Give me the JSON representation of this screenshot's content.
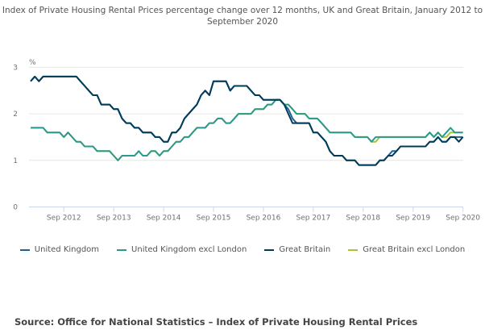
{
  "chart_data": {
    "type": "line",
    "title": "Index of Private Housing Rental Prices percentage change over 12 months, UK and Great Britain, January 2012 to September 2020",
    "title_lines": [
      "Index of Private Housing Rental Prices percentage change over 12 months, UK and Great Britain, January 2012 to",
      "September 2020"
    ],
    "ylabel": "%",
    "xlabel": "",
    "ylim": [
      0,
      3
    ],
    "yticks": [
      "0",
      "1",
      "2",
      "3"
    ],
    "x_start": "Jan 2012",
    "x_end": "Sep 2020",
    "x_step": "month",
    "xticks": [
      "Sep 2012",
      "Sep 2013",
      "Sep 2014",
      "Sep 2015",
      "Sep 2016",
      "Sep 2017",
      "Sep 2018",
      "Sep 2019",
      "Sep 2020"
    ],
    "xtick_month_index": [
      8,
      20,
      32,
      44,
      56,
      68,
      80,
      92,
      104
    ],
    "grid": true,
    "legend_position": "bottom",
    "series": [
      {
        "name": "Great Britain excl London",
        "color": "#a8c23a",
        "values": [
          1.7,
          1.7,
          1.7,
          1.7,
          1.6,
          1.6,
          1.6,
          1.6,
          1.5,
          1.6,
          1.5,
          1.4,
          1.4,
          1.3,
          1.3,
          1.3,
          1.2,
          1.2,
          1.2,
          1.2,
          1.1,
          1.0,
          1.1,
          1.1,
          1.1,
          1.1,
          1.2,
          1.1,
          1.1,
          1.2,
          1.2,
          1.1,
          1.2,
          1.2,
          1.3,
          1.4,
          1.4,
          1.5,
          1.5,
          1.6,
          1.7,
          1.7,
          1.7,
          1.8,
          1.8,
          1.9,
          1.9,
          1.8,
          1.8,
          1.9,
          2.0,
          2.0,
          2.0,
          2.0,
          2.1,
          2.1,
          2.1,
          2.2,
          2.2,
          2.3,
          2.3,
          2.2,
          2.2,
          2.1,
          2.0,
          2.0,
          2.0,
          1.9,
          1.9,
          1.9,
          1.8,
          1.7,
          1.6,
          1.6,
          1.6,
          1.6,
          1.6,
          1.6,
          1.5,
          1.5,
          1.5,
          1.5,
          1.4,
          1.4,
          1.5,
          1.5,
          1.5,
          1.5,
          1.5,
          1.5,
          1.5,
          1.5,
          1.5,
          1.5,
          1.5,
          1.5,
          1.6,
          1.5,
          1.6,
          1.5,
          1.5,
          1.6,
          1.6,
          1.6,
          1.6
        ]
      },
      {
        "name": "United Kingdom excl London",
        "color": "#2a9a8e",
        "values": [
          1.7,
          1.7,
          1.7,
          1.7,
          1.6,
          1.6,
          1.6,
          1.6,
          1.5,
          1.6,
          1.5,
          1.4,
          1.4,
          1.3,
          1.3,
          1.3,
          1.2,
          1.2,
          1.2,
          1.2,
          1.1,
          1.0,
          1.1,
          1.1,
          1.1,
          1.1,
          1.2,
          1.1,
          1.1,
          1.2,
          1.2,
          1.1,
          1.2,
          1.2,
          1.3,
          1.4,
          1.4,
          1.5,
          1.5,
          1.6,
          1.7,
          1.7,
          1.7,
          1.8,
          1.8,
          1.9,
          1.9,
          1.8,
          1.8,
          1.9,
          2.0,
          2.0,
          2.0,
          2.0,
          2.1,
          2.1,
          2.1,
          2.2,
          2.2,
          2.3,
          2.3,
          2.2,
          2.2,
          2.1,
          2.0,
          2.0,
          2.0,
          1.9,
          1.9,
          1.9,
          1.8,
          1.7,
          1.6,
          1.6,
          1.6,
          1.6,
          1.6,
          1.6,
          1.5,
          1.5,
          1.5,
          1.5,
          1.4,
          1.5,
          1.5,
          1.5,
          1.5,
          1.5,
          1.5,
          1.5,
          1.5,
          1.5,
          1.5,
          1.5,
          1.5,
          1.5,
          1.6,
          1.5,
          1.6,
          1.5,
          1.6,
          1.7,
          1.6,
          1.6,
          1.6
        ]
      },
      {
        "name": "United Kingdom",
        "color": "#206095",
        "values": [
          2.7,
          2.8,
          2.7,
          2.8,
          2.8,
          2.8,
          2.8,
          2.8,
          2.8,
          2.8,
          2.8,
          2.8,
          2.7,
          2.6,
          2.5,
          2.4,
          2.4,
          2.2,
          2.2,
          2.2,
          2.1,
          2.1,
          1.9,
          1.8,
          1.8,
          1.7,
          1.7,
          1.6,
          1.6,
          1.6,
          1.5,
          1.5,
          1.4,
          1.4,
          1.6,
          1.6,
          1.7,
          1.9,
          2.0,
          2.1,
          2.2,
          2.4,
          2.5,
          2.4,
          2.7,
          2.7,
          2.7,
          2.7,
          2.5,
          2.6,
          2.6,
          2.6,
          2.6,
          2.5,
          2.4,
          2.4,
          2.3,
          2.3,
          2.3,
          2.3,
          2.3,
          2.2,
          2.1,
          1.9,
          1.8,
          1.8,
          1.8,
          1.8,
          1.6,
          1.6,
          1.5,
          1.4,
          1.2,
          1.1,
          1.1,
          1.1,
          1.0,
          1.0,
          1.0,
          0.9,
          0.9,
          0.9,
          0.9,
          0.9,
          1.0,
          1.0,
          1.1,
          1.2,
          1.2,
          1.3,
          1.3,
          1.3,
          1.3,
          1.3,
          1.3,
          1.3,
          1.4,
          1.4,
          1.5,
          1.4,
          1.4,
          1.5,
          1.5,
          1.5,
          1.5
        ]
      },
      {
        "name": "Great Britain",
        "color": "#003c57",
        "values": [
          2.7,
          2.8,
          2.7,
          2.8,
          2.8,
          2.8,
          2.8,
          2.8,
          2.8,
          2.8,
          2.8,
          2.8,
          2.7,
          2.6,
          2.5,
          2.4,
          2.4,
          2.2,
          2.2,
          2.2,
          2.1,
          2.1,
          1.9,
          1.8,
          1.8,
          1.7,
          1.7,
          1.6,
          1.6,
          1.6,
          1.5,
          1.5,
          1.4,
          1.4,
          1.6,
          1.6,
          1.7,
          1.9,
          2.0,
          2.1,
          2.2,
          2.4,
          2.5,
          2.4,
          2.7,
          2.7,
          2.7,
          2.7,
          2.5,
          2.6,
          2.6,
          2.6,
          2.6,
          2.5,
          2.4,
          2.4,
          2.3,
          2.3,
          2.3,
          2.3,
          2.3,
          2.2,
          2.0,
          1.8,
          1.8,
          1.8,
          1.8,
          1.8,
          1.6,
          1.6,
          1.5,
          1.4,
          1.2,
          1.1,
          1.1,
          1.1,
          1.0,
          1.0,
          1.0,
          0.9,
          0.9,
          0.9,
          0.9,
          0.9,
          1.0,
          1.0,
          1.1,
          1.1,
          1.2,
          1.3,
          1.3,
          1.3,
          1.3,
          1.3,
          1.3,
          1.3,
          1.4,
          1.4,
          1.5,
          1.4,
          1.4,
          1.5,
          1.5,
          1.4,
          1.5
        ]
      }
    ],
    "legend_order": [
      "United Kingdom",
      "United Kingdom excl London",
      "Great Britain",
      "Great Britain excl London"
    ]
  },
  "legend": [
    {
      "label": "United Kingdom",
      "color": "#206095"
    },
    {
      "label": "United Kingdom excl London",
      "color": "#2a9a8e"
    },
    {
      "label": "Great Britain",
      "color": "#003c57"
    },
    {
      "label": "Great Britain excl London",
      "color": "#a8c23a"
    }
  ],
  "source": "Source: Office for National Statistics – Index of Private Housing Rental Prices"
}
